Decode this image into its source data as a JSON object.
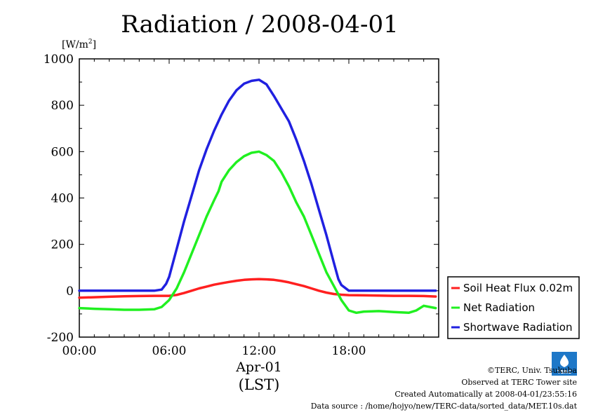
{
  "chart_data": {
    "type": "line",
    "title": "Radiation / 2008-04-01",
    "y_unit_base": "[W/m",
    "y_unit_exp": "2",
    "y_unit_close": "]",
    "ylim": [
      -200,
      1000
    ],
    "yticks": [
      -200,
      0,
      200,
      400,
      600,
      800,
      1000
    ],
    "ytick_labels": [
      "-200",
      "0",
      "200",
      "400",
      "600",
      "800",
      "1000"
    ],
    "xlim": [
      0,
      24
    ],
    "xticks": [
      0,
      6,
      12,
      18
    ],
    "xtick_labels": [
      "00:00",
      "06:00",
      "12:00",
      "18:00"
    ],
    "xlabel_date": "Apr-01",
    "xlabel": "(LST)",
    "grid": false,
    "legend_position": "right",
    "series": [
      {
        "name": "Soil Heat Flux 0.02m",
        "color": "#ff2020",
        "x": [
          0,
          1,
          2,
          3,
          4,
          5,
          6,
          6.5,
          7,
          7.5,
          8,
          8.5,
          9,
          9.5,
          10,
          10.5,
          11,
          11.5,
          12,
          12.5,
          13,
          13.5,
          14,
          14.5,
          15,
          15.5,
          16,
          16.5,
          17,
          17.5,
          18,
          19,
          20,
          21,
          22,
          23,
          23.8
        ],
        "y": [
          -30,
          -28,
          -26,
          -24,
          -23,
          -22,
          -22,
          -18,
          -10,
          0,
          10,
          18,
          26,
          32,
          38,
          43,
          47,
          49,
          50,
          49,
          47,
          42,
          36,
          28,
          20,
          10,
          0,
          -8,
          -14,
          -17,
          -19,
          -20,
          -21,
          -22,
          -22,
          -23,
          -25
        ]
      },
      {
        "name": "Net Radiation",
        "color": "#20f020",
        "x": [
          0,
          1,
          2,
          3,
          4,
          5,
          5.5,
          6,
          6.5,
          7,
          7.5,
          8,
          8.5,
          9,
          9.3,
          9.5,
          10,
          10.5,
          11,
          11.5,
          12,
          12.5,
          13,
          13.5,
          14,
          14.5,
          15,
          15.5,
          16,
          16.5,
          17,
          17.5,
          18,
          18.5,
          19,
          20,
          21,
          22,
          22.5,
          23,
          23.8
        ],
        "y": [
          -75,
          -78,
          -80,
          -82,
          -82,
          -80,
          -70,
          -40,
          10,
          80,
          160,
          240,
          320,
          390,
          430,
          470,
          520,
          555,
          580,
          595,
          600,
          585,
          560,
          510,
          450,
          380,
          320,
          240,
          160,
          80,
          20,
          -40,
          -85,
          -95,
          -90,
          -88,
          -92,
          -95,
          -85,
          -65,
          -75
        ]
      },
      {
        "name": "Shortwave Radiation",
        "color": "#2020e0",
        "x": [
          0,
          1,
          2,
          3,
          4,
          5,
          5.5,
          5.8,
          6,
          6.5,
          7,
          7.5,
          8,
          8.5,
          9,
          9.5,
          10,
          10.5,
          11,
          11.5,
          12,
          12.5,
          13,
          13.5,
          14,
          14.5,
          15,
          15.5,
          16,
          16.5,
          17,
          17.3,
          17.5,
          18,
          19,
          20,
          21,
          22,
          23,
          23.8
        ],
        "y": [
          0,
          0,
          0,
          0,
          0,
          0,
          5,
          30,
          60,
          180,
          300,
          410,
          520,
          610,
          690,
          760,
          820,
          865,
          893,
          905,
          910,
          890,
          840,
          785,
          730,
          650,
          560,
          460,
          350,
          240,
          120,
          50,
          25,
          0,
          0,
          0,
          0,
          0,
          0,
          0
        ]
      }
    ]
  },
  "footer": {
    "copyright": "©TERC, Univ. Tsukuba",
    "observed": "Observed at TERC Tower site",
    "created": "Created Automatically at 2008-04-01/23:55:16",
    "source": "Data source : /home/hojyo/new/TERC-data/sorted_data/MET.10s.dat",
    "logo_text": "TERC"
  }
}
